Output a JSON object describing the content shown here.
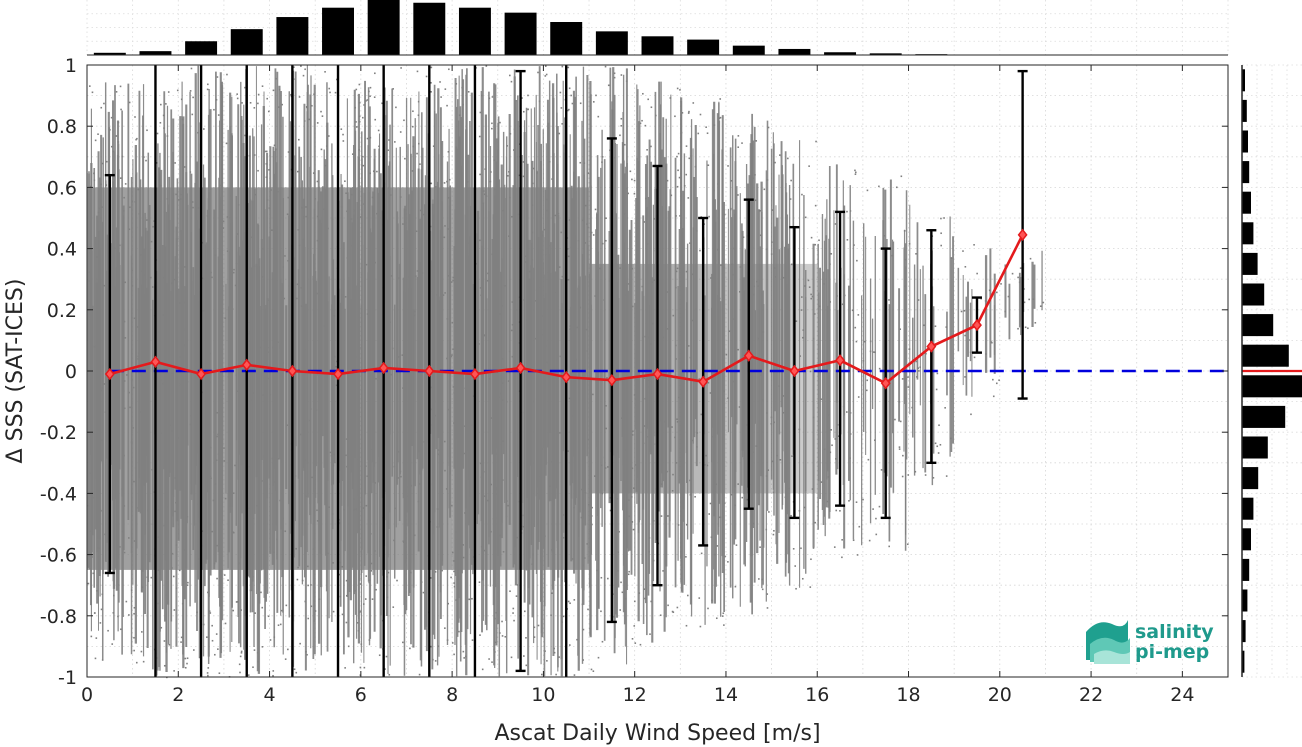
{
  "chart_data": {
    "type": "scatter",
    "xlabel": "Ascat Daily Wind Speed [m/s]",
    "ylabel": "Δ SSS (SAT-ICES)",
    "xlim": [
      0,
      25
    ],
    "ylim": [
      -1,
      1
    ],
    "xticks": [
      0,
      2,
      4,
      6,
      8,
      10,
      12,
      14,
      16,
      18,
      20,
      22,
      24
    ],
    "xtick_labels": [
      "0",
      "2",
      "4",
      "6",
      "8",
      "10",
      "12",
      "14",
      "16",
      "18",
      "20",
      "22",
      "24"
    ],
    "yticks": [
      1,
      0.8,
      0.6,
      0.4,
      0.2,
      0,
      -0.2,
      -0.4,
      -0.6,
      -0.8,
      -1
    ],
    "ytick_labels": [
      "1",
      "0.8",
      "0.6",
      "0.4",
      "0.2",
      "0",
      "-0.2",
      "-0.4",
      "-0.6",
      "-0.8",
      "-1"
    ],
    "grid": true,
    "colors": {
      "scatter": "#808080",
      "mean_line": "#e41a1c",
      "zero_line": "#0000dd",
      "errorbar": "#000000",
      "hist": "#000000"
    },
    "zero_line": 0,
    "series": [
      {
        "kind": "binned-mean-with-std",
        "x": [
          0.5,
          1.5,
          2.5,
          3.5,
          4.5,
          5.5,
          6.5,
          7.5,
          8.5,
          9.5,
          10.5,
          11.5,
          12.5,
          13.5,
          14.5,
          15.5,
          16.5,
          17.5,
          18.5,
          19.5,
          20.5
        ],
        "mean": [
          -0.01,
          0.03,
          -0.01,
          0.02,
          0.0,
          -0.01,
          0.01,
          0.0,
          -0.01,
          0.01,
          -0.02,
          -0.03,
          -0.01,
          -0.035,
          0.05,
          0.0,
          0.035,
          -0.04,
          0.08,
          0.15,
          0.445
        ],
        "upper": [
          0.64,
          1.0,
          1.0,
          1.0,
          1.0,
          1.0,
          1.0,
          1.0,
          1.0,
          0.98,
          1.0,
          0.76,
          0.67,
          0.5,
          0.56,
          0.47,
          0.52,
          0.4,
          0.46,
          0.24,
          0.98
        ],
        "lower": [
          -0.66,
          -1.0,
          -1.0,
          -1.0,
          -1.0,
          -1.0,
          -1.0,
          -1.0,
          -1.0,
          -0.98,
          -1.0,
          -0.82,
          -0.7,
          -0.57,
          -0.45,
          -0.48,
          -0.44,
          -0.48,
          -0.3,
          0.06,
          -0.09
        ]
      }
    ],
    "scatter_extent": {
      "x": [
        0.5,
        1.5,
        2.5,
        3.5,
        4.5,
        5.5,
        6.5,
        7.5,
        8.5,
        9.5,
        10.5,
        11.5,
        12.5,
        13.5,
        14.5,
        15.5,
        16.5,
        17.5,
        18.5,
        19.5,
        20.5
      ],
      "upper": [
        0.95,
        1.0,
        1.0,
        1.0,
        1.0,
        1.0,
        1.0,
        1.0,
        1.0,
        1.0,
        1.0,
        1.0,
        0.95,
        0.9,
        0.85,
        0.8,
        0.7,
        0.65,
        0.55,
        0.45,
        0.4
      ],
      "lower": [
        -0.95,
        -1.0,
        -1.0,
        -1.0,
        -1.0,
        -1.0,
        -1.0,
        -1.0,
        -1.0,
        -1.0,
        -1.0,
        -0.98,
        -0.9,
        -0.85,
        -0.8,
        -0.72,
        -0.62,
        -0.6,
        -0.4,
        -0.15,
        0.1
      ]
    },
    "top_histogram": {
      "x": [
        0.5,
        1.5,
        2.5,
        3.5,
        4.5,
        5.5,
        6.5,
        7.5,
        8.5,
        9.5,
        10.5,
        11.5,
        12.5,
        13.5,
        14.5,
        15.5,
        16.5,
        17.5,
        18.5,
        19.5
      ],
      "relative_counts": [
        0.04,
        0.07,
        0.25,
        0.47,
        0.69,
        0.86,
        1.0,
        0.95,
        0.86,
        0.77,
        0.6,
        0.43,
        0.34,
        0.28,
        0.17,
        0.11,
        0.05,
        0.03,
        0.015,
        0.008
      ]
    },
    "right_histogram": {
      "y": [
        0.95,
        0.85,
        0.75,
        0.65,
        0.55,
        0.45,
        0.35,
        0.25,
        0.15,
        0.05,
        -0.05,
        -0.15,
        -0.25,
        -0.35,
        -0.45,
        -0.55,
        -0.65,
        -0.75,
        -0.85,
        -0.95
      ],
      "relative_counts": [
        0.05,
        0.08,
        0.1,
        0.12,
        0.15,
        0.19,
        0.26,
        0.37,
        0.52,
        0.78,
        1.0,
        0.72,
        0.43,
        0.27,
        0.19,
        0.15,
        0.12,
        0.09,
        0.06,
        0.04
      ],
      "mean_marker_y": 0.0
    }
  },
  "logo": {
    "line1": "salinity",
    "line2": "pi-mep"
  }
}
